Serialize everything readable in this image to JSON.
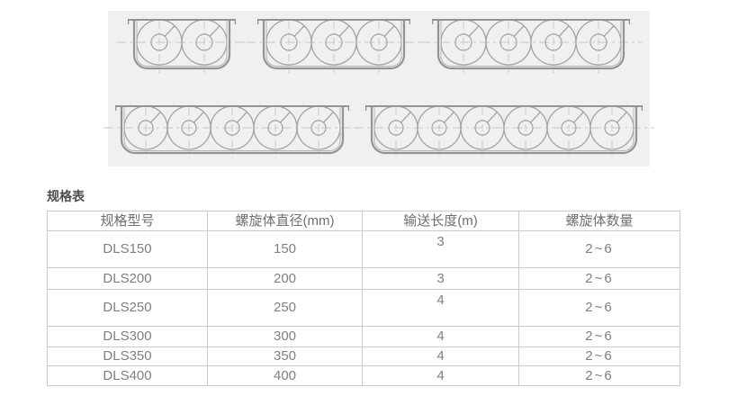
{
  "spec_section": {
    "table_title": "规格表"
  },
  "spec_table": {
    "columns": [
      "规格型号",
      "螺旋体直径(mm)",
      "输送长度(m)",
      "螺旋体数量"
    ],
    "rows": [
      {
        "model": "DLS150",
        "diameter_mm": "150",
        "length_m": "3",
        "screw_count": "2~6"
      },
      {
        "model": "DLS200",
        "diameter_mm": "200",
        "length_m": "3",
        "screw_count": "2~6"
      },
      {
        "model": "DLS250",
        "diameter_mm": "250",
        "length_m": "4",
        "screw_count": "2~6"
      },
      {
        "model": "DLS300",
        "diameter_mm": "300",
        "length_m": "4",
        "screw_count": "2~6"
      },
      {
        "model": "DLS350",
        "diameter_mm": "350",
        "length_m": "4",
        "screw_count": "2~6"
      },
      {
        "model": "DLS400",
        "diameter_mm": "400",
        "length_m": "4",
        "screw_count": "2~6"
      }
    ]
  },
  "diagram_panel": {
    "rows": [
      {
        "circle_radius": 25,
        "troughs": [
          {
            "screw_circles": 2
          },
          {
            "screw_circles": 3
          },
          {
            "screw_circles": 4
          }
        ]
      },
      {
        "circle_radius": 24,
        "troughs": [
          {
            "screw_circles": 5
          },
          {
            "screw_circles": 6
          }
        ]
      }
    ],
    "colors": {
      "panel_background": "#f0f0ef",
      "trough_outline": "#939393",
      "trough_inner_line": "#b3b3b3",
      "circle_line": "#a2a2a2",
      "centerline_dash": "#c8c8c7"
    }
  }
}
